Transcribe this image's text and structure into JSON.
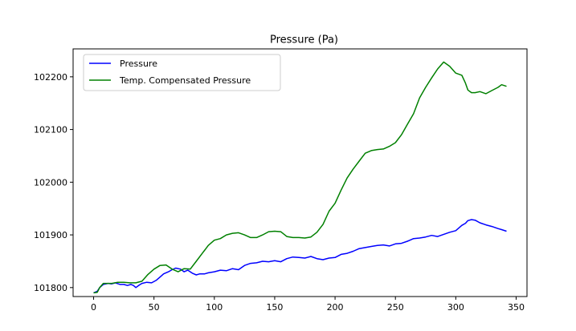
{
  "chart_data": {
    "type": "line",
    "title": "Pressure (Pa)",
    "xlabel": "",
    "ylabel": "",
    "xlim": [
      -17,
      359
    ],
    "ylim": [
      101783,
      102253
    ],
    "xticks": [
      0,
      50,
      100,
      150,
      200,
      250,
      300,
      350
    ],
    "yticks": [
      101800,
      101900,
      102000,
      102100,
      102200
    ],
    "grid": false,
    "legend_position": "upper-left",
    "series": [
      {
        "name": "Pressure",
        "color": "#0000ff",
        "x": [
          0,
          3,
          5,
          8,
          12,
          15,
          18,
          22,
          25,
          28,
          31,
          33,
          35,
          38,
          40,
          44,
          48,
          52,
          55,
          58,
          62,
          65,
          68,
          72,
          75,
          78,
          82,
          85,
          88,
          92,
          95,
          100,
          105,
          110,
          115,
          120,
          125,
          130,
          135,
          140,
          145,
          150,
          155,
          160,
          165,
          170,
          175,
          180,
          185,
          190,
          195,
          200,
          205,
          210,
          215,
          220,
          225,
          230,
          235,
          240,
          245,
          250,
          255,
          260,
          265,
          270,
          275,
          280,
          285,
          290,
          295,
          300,
          305,
          308,
          310,
          313,
          316,
          320,
          325,
          330,
          335,
          338,
          342
        ],
        "y": [
          101790,
          101793,
          101800,
          101806,
          101808,
          101807,
          101809,
          101806,
          101806,
          101804,
          101806,
          101804,
          101800,
          101805,
          101808,
          101810,
          101809,
          101814,
          101820,
          101826,
          101830,
          101834,
          101837,
          101835,
          101830,
          101833,
          101827,
          101824,
          101826,
          101826,
          101828,
          101830,
          101833,
          101832,
          101836,
          101834,
          101842,
          101846,
          101847,
          101850,
          101849,
          101851,
          101849,
          101855,
          101858,
          101857,
          101856,
          101859,
          101855,
          101853,
          101856,
          101857,
          101863,
          101865,
          101869,
          101874,
          101876,
          101878,
          101880,
          101881,
          101879,
          101883,
          101884,
          101888,
          101893,
          101894,
          101896,
          101899,
          101897,
          101901,
          101905,
          101908,
          101918,
          101922,
          101927,
          101929,
          101928,
          101923,
          101919,
          101916,
          101912,
          101910,
          101907
        ]
      },
      {
        "name": "Temp. Compensated Pressure",
        "color": "#008000",
        "x": [
          0,
          3,
          5,
          8,
          12,
          15,
          20,
          25,
          30,
          35,
          40,
          45,
          50,
          55,
          60,
          65,
          70,
          75,
          80,
          85,
          90,
          95,
          100,
          105,
          110,
          115,
          120,
          125,
          130,
          135,
          140,
          145,
          150,
          155,
          160,
          165,
          170,
          175,
          180,
          185,
          190,
          195,
          200,
          205,
          210,
          215,
          220,
          225,
          230,
          235,
          240,
          245,
          250,
          255,
          260,
          265,
          270,
          275,
          280,
          285,
          290,
          295,
          300,
          305,
          308,
          310,
          313,
          316,
          320,
          325,
          330,
          335,
          338,
          342
        ],
        "y": [
          101790,
          101791,
          101800,
          101808,
          101808,
          101808,
          101810,
          101810,
          101809,
          101809,
          101812,
          101825,
          101835,
          101842,
          101843,
          101835,
          101830,
          101836,
          101835,
          101850,
          101865,
          101880,
          101890,
          101893,
          101900,
          101903,
          101904,
          101900,
          101895,
          101895,
          101900,
          101906,
          101907,
          101906,
          101897,
          101895,
          101895,
          101894,
          101896,
          101905,
          101920,
          101945,
          101960,
          101985,
          102008,
          102025,
          102040,
          102055,
          102060,
          102062,
          102063,
          102068,
          102075,
          102090,
          102110,
          102130,
          102160,
          102180,
          102198,
          102215,
          102228,
          102220,
          102207,
          102203,
          102188,
          102175,
          102170,
          102170,
          102172,
          102168,
          102174,
          102180,
          102185,
          102182
        ]
      }
    ]
  }
}
